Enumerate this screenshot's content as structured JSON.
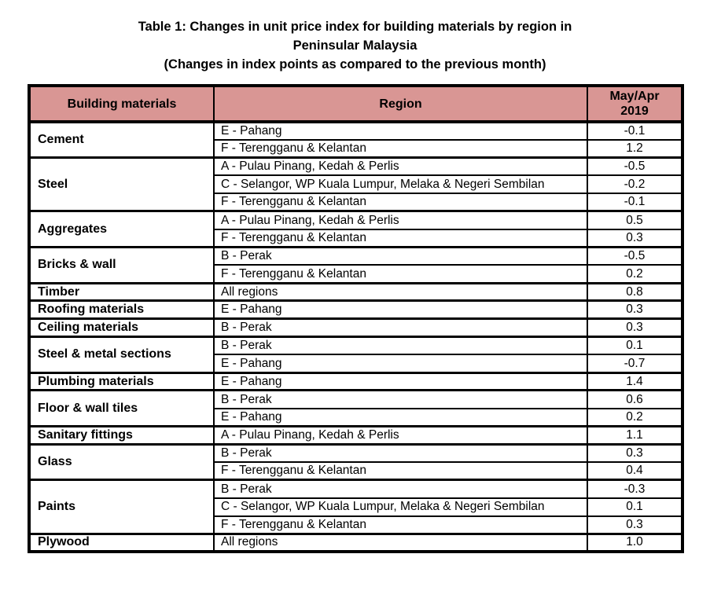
{
  "title": {
    "line1": "Table 1: Changes in unit price index for building materials by region in",
    "line2": "Peninsular Malaysia",
    "line3": "(Changes in index points as compared to the previous month)"
  },
  "table": {
    "header_bg": "#D99694",
    "headers": [
      "Building materials",
      "Region",
      "May/Apr\n2019"
    ],
    "groups": [
      {
        "material": "Cement",
        "rows": [
          {
            "region": "E - Pahang",
            "value": "-0.1"
          },
          {
            "region": "F - Terengganu & Kelantan",
            "value": "1.2"
          }
        ]
      },
      {
        "material": "Steel",
        "rows": [
          {
            "region": "A - Pulau Pinang, Kedah & Perlis",
            "value": "-0.5"
          },
          {
            "region": "C - Selangor, WP Kuala Lumpur, Melaka & Negeri Sembilan",
            "value": "-0.2"
          },
          {
            "region": "F - Terengganu & Kelantan",
            "value": "-0.1"
          }
        ]
      },
      {
        "material": "Aggregates",
        "rows": [
          {
            "region": "A - Pulau Pinang, Kedah & Perlis",
            "value": "0.5"
          },
          {
            "region": "F - Terengganu & Kelantan",
            "value": "0.3"
          }
        ]
      },
      {
        "material": "Bricks & wall",
        "rows": [
          {
            "region": "B - Perak",
            "value": "-0.5"
          },
          {
            "region": "F - Terengganu & Kelantan",
            "value": "0.2"
          }
        ]
      },
      {
        "material": "Timber",
        "rows": [
          {
            "region": "All regions",
            "value": "0.8"
          }
        ]
      },
      {
        "material": "Roofing materials",
        "rows": [
          {
            "region": "E - Pahang",
            "value": "0.3"
          }
        ]
      },
      {
        "material": "Ceiling materials",
        "rows": [
          {
            "region": "B - Perak",
            "value": "0.3"
          }
        ]
      },
      {
        "material": "Steel & metal sections",
        "rows": [
          {
            "region": "B - Perak",
            "value": "0.1"
          },
          {
            "region": "E - Pahang",
            "value": "-0.7"
          }
        ]
      },
      {
        "material": "Plumbing materials",
        "rows": [
          {
            "region": "E - Pahang",
            "value": "1.4"
          }
        ]
      },
      {
        "material": "Floor & wall tiles",
        "rows": [
          {
            "region": "B - Perak",
            "value": "0.6"
          },
          {
            "region": "E - Pahang",
            "value": "0.2"
          }
        ]
      },
      {
        "material": "Sanitary fittings",
        "rows": [
          {
            "region": "A - Pulau Pinang, Kedah & Perlis",
            "value": "1.1"
          }
        ]
      },
      {
        "material": "Glass",
        "rows": [
          {
            "region": "B - Perak",
            "value": "0.3"
          },
          {
            "region": "F - Terengganu & Kelantan",
            "value": "0.4"
          }
        ]
      },
      {
        "material": "Paints",
        "rows": [
          {
            "region": "B - Perak",
            "value": "-0.3"
          },
          {
            "region": "C - Selangor, WP Kuala Lumpur, Melaka & Negeri Sembilan",
            "value": "0.1"
          },
          {
            "region": "F - Terengganu & Kelantan",
            "value": "0.3"
          }
        ]
      },
      {
        "material": "Plywood",
        "rows": [
          {
            "region": "All regions",
            "value": "1.0"
          }
        ]
      }
    ]
  }
}
